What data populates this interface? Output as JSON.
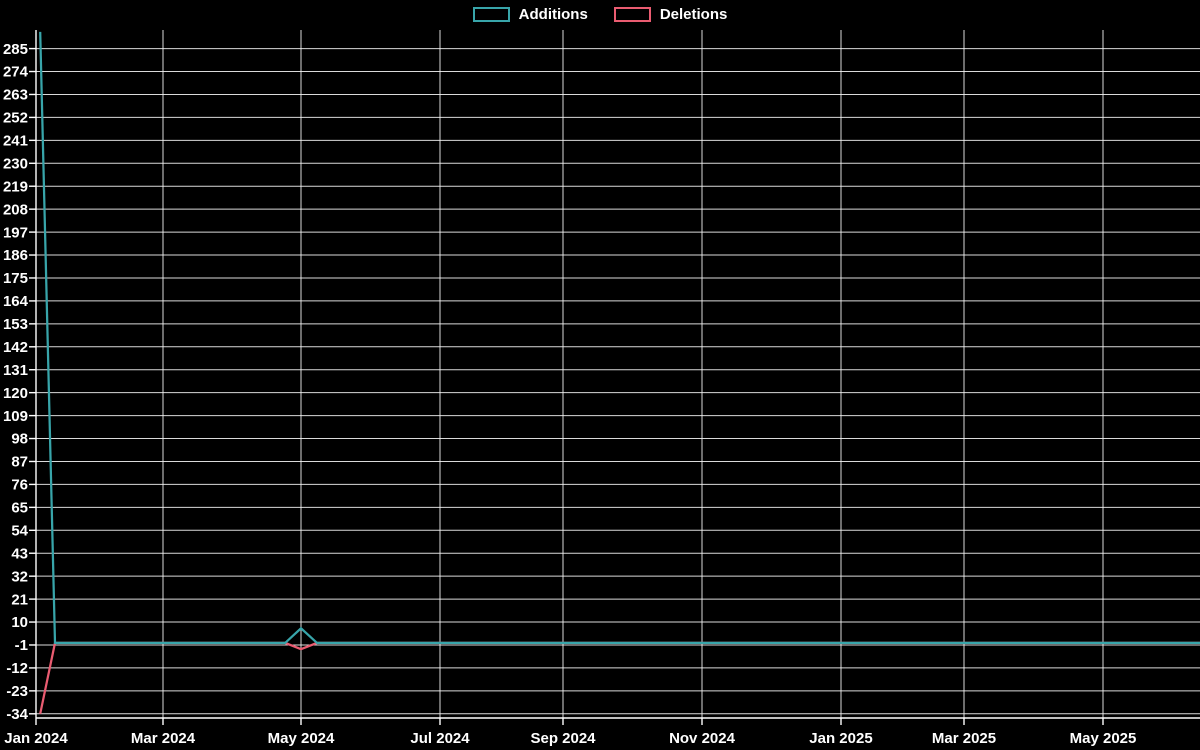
{
  "page": {
    "background": "#000000",
    "grid_color": "#f2f2f2",
    "axis_color": "#ffffff",
    "label_color": "#ffffff"
  },
  "legend": {
    "items": [
      {
        "label": "Additions",
        "color": "#38a5aa"
      },
      {
        "label": "Deletions",
        "color": "#ea5c71"
      }
    ]
  },
  "chart_data": {
    "type": "line",
    "title": "",
    "xlabel": "",
    "ylabel": "",
    "grid": true,
    "legend_position": "top-center",
    "background": "#000000",
    "ylim": [
      -34,
      296
    ],
    "y_ticks": [
      -34,
      -23,
      -12,
      -1,
      10,
      21,
      32,
      43,
      54,
      65,
      76,
      87,
      98,
      109,
      120,
      131,
      142,
      153,
      164,
      175,
      186,
      197,
      208,
      219,
      230,
      241,
      252,
      263,
      274,
      285
    ],
    "x_tick_labels": [
      "Jan 2024",
      "Mar 2024",
      "May 2024",
      "Jul 2024",
      "Sep 2024",
      "Nov 2024",
      "Jan 2025",
      "Mar 2025",
      "May 2025"
    ],
    "x_tick_dates": [
      "2024-01-01",
      "2024-03-01",
      "2024-05-01",
      "2024-07-01",
      "2024-09-01",
      "2024-11-01",
      "2025-01-01",
      "2025-03-01",
      "2025-05-01"
    ],
    "series": [
      {
        "name": "Deletions",
        "color": "#ea5c71",
        "points": [
          {
            "date": "2024-01-03",
            "value": -34
          },
          {
            "date": "2024-01-10",
            "value": 0
          },
          {
            "date": "2024-04-24",
            "value": 0
          },
          {
            "date": "2024-05-01",
            "value": -3
          },
          {
            "date": "2024-05-08",
            "value": 0
          },
          {
            "date": "2025-06-18",
            "value": 0
          }
        ]
      },
      {
        "name": "Additions",
        "color": "#38a5aa",
        "points": [
          {
            "date": "2024-01-03",
            "value": 293
          },
          {
            "date": "2024-01-10",
            "value": 0
          },
          {
            "date": "2024-04-24",
            "value": 0
          },
          {
            "date": "2024-05-01",
            "value": 7
          },
          {
            "date": "2024-05-08",
            "value": 0
          },
          {
            "date": "2025-06-18",
            "value": 0
          }
        ]
      }
    ]
  }
}
